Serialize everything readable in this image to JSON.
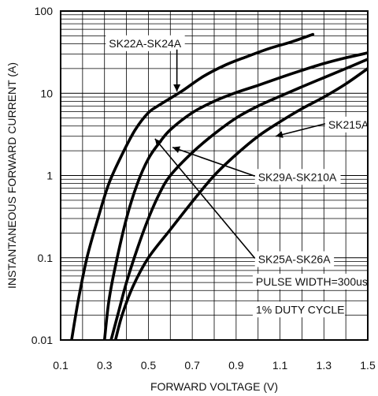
{
  "chart_data": {
    "type": "line",
    "xlabel": "FORWARD VOLTAGE (V)",
    "ylabel": "INSTANTANEOUS FORWARD CURRENT (A)",
    "xlim": [
      0.1,
      1.5
    ],
    "ylim": [
      0.01,
      100
    ],
    "yscale": "log",
    "grid": true,
    "x_ticks": [
      0.1,
      0.3,
      0.5,
      0.7,
      0.9,
      1.1,
      1.3,
      1.5
    ],
    "x_tick_labels": [
      "0.1",
      "0.3",
      "0.5",
      "0.7",
      "0.9",
      "1.1",
      "1.3",
      "1.5"
    ],
    "y_ticks": [
      0.01,
      0.1,
      1,
      10,
      100
    ],
    "y_tick_labels": [
      "0.01",
      "0.1",
      "1",
      "10",
      "100"
    ],
    "series": [
      {
        "name": "SK22A-SK24A",
        "points": [
          [
            0.15,
            0.01
          ],
          [
            0.18,
            0.03
          ],
          [
            0.22,
            0.1
          ],
          [
            0.27,
            0.3
          ],
          [
            0.32,
            0.8
          ],
          [
            0.38,
            1.8
          ],
          [
            0.44,
            3.6
          ],
          [
            0.5,
            5.8
          ],
          [
            0.55,
            7.2
          ],
          [
            0.65,
            10.5
          ],
          [
            0.75,
            16
          ],
          [
            0.85,
            22
          ],
          [
            0.95,
            28
          ],
          [
            1.05,
            35
          ],
          [
            1.15,
            42
          ],
          [
            1.25,
            52
          ]
        ]
      },
      {
        "name": "SK25A-SK26A",
        "points": [
          [
            0.3,
            0.01
          ],
          [
            0.32,
            0.03
          ],
          [
            0.35,
            0.08
          ],
          [
            0.4,
            0.3
          ],
          [
            0.45,
            0.8
          ],
          [
            0.5,
            1.6
          ],
          [
            0.55,
            2.5
          ],
          [
            0.6,
            3.6
          ],
          [
            0.7,
            5.8
          ],
          [
            0.8,
            8
          ],
          [
            0.9,
            10.2
          ],
          [
            1.0,
            12.5
          ],
          [
            1.1,
            15.5
          ],
          [
            1.2,
            19
          ],
          [
            1.3,
            23
          ],
          [
            1.4,
            27
          ],
          [
            1.5,
            31
          ]
        ]
      },
      {
        "name": "SK29A-SK210A",
        "points": [
          [
            0.33,
            0.01
          ],
          [
            0.36,
            0.02
          ],
          [
            0.4,
            0.05
          ],
          [
            0.45,
            0.13
          ],
          [
            0.5,
            0.3
          ],
          [
            0.55,
            0.6
          ],
          [
            0.6,
            1.0
          ],
          [
            0.7,
            1.9
          ],
          [
            0.8,
            3.2
          ],
          [
            0.9,
            5.0
          ],
          [
            1.0,
            7.0
          ],
          [
            1.1,
            9.2
          ],
          [
            1.2,
            12
          ],
          [
            1.3,
            15.5
          ],
          [
            1.4,
            20
          ],
          [
            1.5,
            26
          ]
        ]
      },
      {
        "name": "SK215A",
        "points": [
          [
            0.35,
            0.01
          ],
          [
            0.38,
            0.02
          ],
          [
            0.43,
            0.045
          ],
          [
            0.5,
            0.1
          ],
          [
            0.6,
            0.22
          ],
          [
            0.7,
            0.48
          ],
          [
            0.8,
            1.0
          ],
          [
            0.9,
            1.8
          ],
          [
            1.0,
            3.0
          ],
          [
            1.1,
            4.5
          ],
          [
            1.2,
            6.5
          ],
          [
            1.3,
            9.0
          ],
          [
            1.4,
            13
          ],
          [
            1.5,
            20
          ]
        ]
      }
    ],
    "annotations": [
      {
        "text": "SK22A-SK24A",
        "series": "SK22A-SK24A",
        "x": 0.32,
        "y": 38,
        "arrow_to": [
          0.63,
          10.5
        ]
      },
      {
        "text": "SK29A-SK210A",
        "series": "SK29A-SK210A",
        "x": 1.0,
        "y": 0.9,
        "arrow_to": [
          0.61,
          2.2
        ]
      },
      {
        "text": "SK25A-SK26A",
        "series": "SK25A-SK26A",
        "x": 1.0,
        "y": 0.09,
        "arrow_to": [
          0.53,
          2.8
        ]
      },
      {
        "text": "SK215A",
        "series": "SK215A",
        "x": 1.32,
        "y": 3.9,
        "arrow_to": [
          1.08,
          3.0
        ]
      },
      {
        "text": "PULSE WIDTH=300us",
        "x": 0.99,
        "y": 0.048
      },
      {
        "text": "1% DUTY CYCLE",
        "x": 0.99,
        "y": 0.022
      }
    ]
  }
}
